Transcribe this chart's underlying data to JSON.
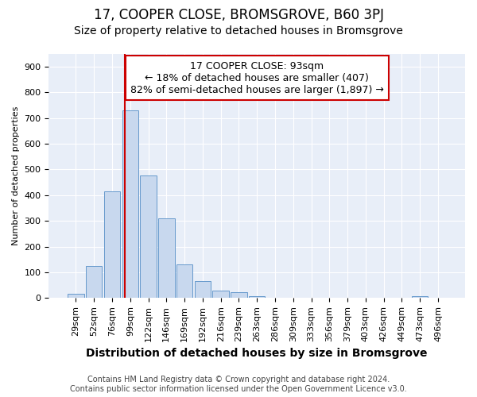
{
  "title": "17, COOPER CLOSE, BROMSGROVE, B60 3PJ",
  "subtitle": "Size of property relative to detached houses in Bromsgrove",
  "xlabel": "Distribution of detached houses by size in Bromsgrove",
  "ylabel": "Number of detached properties",
  "bar_vals": [
    15,
    125,
    415,
    730,
    475,
    310,
    130,
    65,
    28,
    22,
    8,
    0,
    0,
    0,
    0,
    0,
    0,
    0,
    0,
    8,
    0
  ],
  "bar_labels": [
    "29sqm",
    "52sqm",
    "76sqm",
    "99sqm",
    "122sqm",
    "146sqm",
    "169sqm",
    "192sqm",
    "216sqm",
    "239sqm",
    "263sqm",
    "286sqm",
    "309sqm",
    "333sqm",
    "356sqm",
    "379sqm",
    "403sqm",
    "426sqm",
    "449sqm",
    "473sqm",
    "496sqm"
  ],
  "bar_color": "#c8d8ee",
  "bar_edge_color": "#6699cc",
  "property_line_label": "17 COOPER CLOSE: 93sqm",
  "annotation_line1": "← 18% of detached houses are smaller (407)",
  "annotation_line2": "82% of semi-detached houses are larger (1,897) →",
  "annotation_box_facecolor": "white",
  "annotation_box_edgecolor": "#cc0000",
  "line_color": "#cc0000",
  "line_x_index": 2.72,
  "ylim": [
    0,
    950
  ],
  "yticks": [
    0,
    100,
    200,
    300,
    400,
    500,
    600,
    700,
    800,
    900
  ],
  "footer_line1": "Contains HM Land Registry data © Crown copyright and database right 2024.",
  "footer_line2": "Contains public sector information licensed under the Open Government Licence v3.0.",
  "bg_color": "#ffffff",
  "plot_bg_color": "#e8eef8",
  "grid_color": "#ffffff",
  "title_fontsize": 12,
  "subtitle_fontsize": 10,
  "xlabel_fontsize": 10,
  "ylabel_fontsize": 8,
  "tick_fontsize": 8,
  "ann_fontsize": 9
}
